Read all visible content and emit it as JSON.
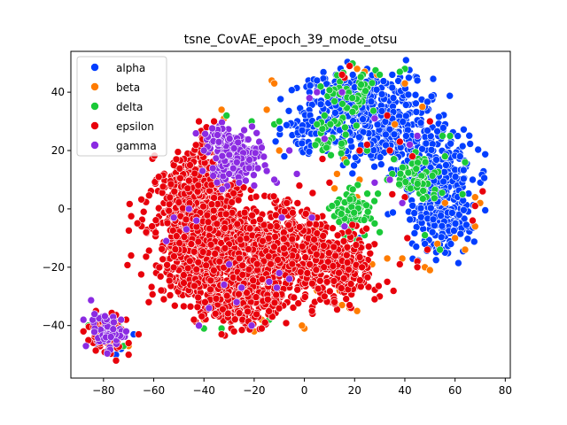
{
  "chart_data": {
    "type": "scatter",
    "title": "tsne_CovAE_epoch_39_mode_otsu",
    "xlabel": "",
    "ylabel": "",
    "xlim": [
      -93,
      82
    ],
    "ylim": [
      -58,
      54
    ],
    "xticks": [
      -80,
      -60,
      -40,
      -20,
      0,
      20,
      40,
      60,
      80
    ],
    "yticks": [
      -40,
      -20,
      0,
      20,
      40
    ],
    "grid": false,
    "legend_position": "top-left",
    "series": [
      {
        "name": "alpha",
        "color": "#023eff",
        "clusters": [
          {
            "center": [
              30,
              30
            ],
            "spread": [
              14,
              10
            ],
            "count": 360
          },
          {
            "center": [
              52,
              10
            ],
            "spread": [
              10,
              12
            ],
            "count": 260
          },
          {
            "center": [
              55,
              -5
            ],
            "spread": [
              8,
              7
            ],
            "count": 120
          },
          {
            "center": [
              15,
              38
            ],
            "spread": [
              10,
              6
            ],
            "count": 120
          },
          {
            "center": [
              0,
              28
            ],
            "spread": [
              6,
              6
            ],
            "count": 60
          }
        ],
        "points": [
          [
            -75,
            -50
          ],
          [
            -73,
            -48
          ],
          [
            -78,
            -45
          ],
          [
            -80,
            -41
          ],
          [
            -76,
            -38
          ],
          [
            -72,
            -44
          ],
          [
            -82,
            -47
          ],
          [
            -68,
            -43
          ],
          [
            25,
            48
          ],
          [
            35,
            46
          ],
          [
            45,
            44
          ],
          [
            62,
            18
          ],
          [
            67,
            10
          ],
          [
            48,
            -12
          ],
          [
            22,
            -10
          ],
          [
            56,
            -15
          ],
          [
            2,
            40
          ],
          [
            -8,
            18
          ],
          [
            5,
            44
          ]
        ]
      },
      {
        "name": "beta",
        "color": "#ff7c00",
        "points": [
          [
            -33,
            34
          ],
          [
            -13,
            44
          ],
          [
            -12,
            43
          ],
          [
            -32,
            31
          ],
          [
            -10,
            20
          ],
          [
            2,
            -2
          ],
          [
            5,
            -6
          ],
          [
            3,
            -8
          ],
          [
            17,
            -16
          ],
          [
            22,
            -12
          ],
          [
            48,
            -20
          ],
          [
            50,
            -21
          ],
          [
            53,
            -12
          ],
          [
            47,
            35
          ],
          [
            40,
            43
          ],
          [
            36,
            29
          ],
          [
            29,
            46
          ],
          [
            48,
            17
          ],
          [
            21,
            4
          ],
          [
            22,
            10
          ],
          [
            56,
            2
          ],
          [
            60,
            -10
          ],
          [
            68,
            -6
          ],
          [
            70,
            2
          ],
          [
            68,
            4
          ],
          [
            16,
            -25
          ],
          [
            12,
            7
          ],
          [
            6,
            -7
          ],
          [
            -15,
            34
          ],
          [
            13,
            -33
          ],
          [
            15,
            -33
          ],
          [
            18,
            -34
          ],
          [
            21,
            -35
          ],
          [
            14,
            -28
          ],
          [
            5,
            -28
          ],
          [
            7,
            -28
          ],
          [
            0,
            -41
          ],
          [
            -1,
            -40
          ],
          [
            -17,
            -38
          ],
          [
            -33,
            -36
          ],
          [
            -40,
            -38
          ],
          [
            -31,
            -32
          ],
          [
            -26,
            -34
          ],
          [
            -22,
            -39
          ],
          [
            -20,
            -42
          ],
          [
            -43,
            -15
          ],
          [
            -47,
            -12
          ],
          [
            -53,
            -14
          ],
          [
            -38,
            5
          ],
          [
            -33,
            8
          ],
          [
            -28,
            4
          ],
          [
            -24,
            -6
          ],
          [
            27,
            -19
          ],
          [
            33,
            -17
          ],
          [
            16,
            17
          ],
          [
            13,
            12
          ],
          [
            21,
            48
          ],
          [
            24,
            47
          ],
          [
            43,
            18
          ],
          [
            -80,
            -45
          ],
          [
            -78,
            -48
          ],
          [
            -74,
            -42
          ],
          [
            -70,
            -47
          ],
          [
            -77,
            -38
          ],
          [
            64,
            -14
          ],
          [
            39,
            -17
          ]
        ]
      },
      {
        "name": "delta",
        "color": "#1ac938",
        "clusters": [
          {
            "center": [
              20,
              0
            ],
            "spread": [
              5,
              4
            ],
            "count": 90
          },
          {
            "center": [
              45,
              10
            ],
            "spread": [
              6,
              6
            ],
            "count": 55
          },
          {
            "center": [
              20,
              38
            ],
            "spread": [
              6,
              6
            ],
            "count": 45
          },
          {
            "center": [
              10,
              25
            ],
            "spread": [
              5,
              5
            ],
            "count": 25
          }
        ],
        "points": [
          [
            40,
            48
          ],
          [
            38,
            47
          ],
          [
            30,
            46
          ],
          [
            8,
            32
          ],
          [
            5,
            29
          ],
          [
            -12,
            29
          ],
          [
            -10,
            30
          ],
          [
            -21,
            30
          ],
          [
            -31,
            32
          ],
          [
            -29,
            22
          ],
          [
            -27,
            15
          ],
          [
            63,
            5
          ],
          [
            64,
            16
          ],
          [
            56,
            18
          ],
          [
            54,
            -14
          ],
          [
            48,
            -9
          ],
          [
            55,
            25
          ],
          [
            58,
            25
          ],
          [
            -78,
            -44
          ],
          [
            -74,
            -40
          ],
          [
            -72,
            -47
          ],
          [
            -80,
            -38
          ],
          [
            -76,
            -46
          ],
          [
            -86,
            -40
          ],
          [
            -83,
            -37
          ],
          [
            -40,
            -41
          ],
          [
            -33,
            -41
          ],
          [
            -16,
            -40
          ],
          [
            -14,
            -38
          ],
          [
            -28,
            -34
          ],
          [
            -25,
            -36
          ],
          [
            13,
            2
          ],
          [
            11,
            1
          ],
          [
            28,
            -5
          ],
          [
            30,
            -8
          ],
          [
            24,
            -9
          ],
          [
            16,
            -9
          ],
          [
            35,
            12
          ],
          [
            33,
            10
          ],
          [
            25,
            20
          ]
        ]
      },
      {
        "name": "epsilon",
        "color": "#e8000b",
        "clusters": [
          {
            "center": [
              -40,
              -10
            ],
            "spread": [
              13,
              13
            ],
            "count": 950
          },
          {
            "center": [
              -10,
              -15
            ],
            "spread": [
              12,
              10
            ],
            "count": 600
          },
          {
            "center": [
              -25,
              -30
            ],
            "spread": [
              10,
              7
            ],
            "count": 300
          },
          {
            "center": [
              15,
              -20
            ],
            "spread": [
              9,
              8
            ],
            "count": 220
          },
          {
            "center": [
              -45,
              10
            ],
            "spread": [
              8,
              6
            ],
            "count": 170
          },
          {
            "center": [
              -78,
              -42
            ],
            "spread": [
              4,
              4
            ],
            "count": 130
          },
          {
            "center": [
              -40,
              20
            ],
            "spread": [
              3,
              5
            ],
            "count": 30
          }
        ],
        "points": [
          [
            -42,
            30
          ],
          [
            -39,
            28
          ],
          [
            -35,
            25
          ],
          [
            -36,
            30
          ],
          [
            -52,
            15
          ],
          [
            -58,
            11
          ],
          [
            -64,
            -1
          ],
          [
            -69,
            -16
          ],
          [
            -62,
            -32
          ],
          [
            -56,
            -31
          ],
          [
            -63,
            -8
          ],
          [
            -51,
            17
          ],
          [
            -44,
            -38
          ],
          [
            -33,
            -43
          ],
          [
            -28,
            -42
          ],
          [
            -17,
            -41
          ],
          [
            30,
            -30
          ],
          [
            28,
            -31
          ],
          [
            33,
            -25
          ],
          [
            38,
            -19
          ],
          [
            45,
            -18
          ],
          [
            49,
            -14
          ],
          [
            41,
            -10
          ],
          [
            45,
            -20
          ],
          [
            18,
            -33
          ],
          [
            12,
            -32
          ],
          [
            8,
            -30
          ],
          [
            3,
            -35
          ],
          [
            22,
            20
          ],
          [
            25,
            22
          ],
          [
            34,
            20
          ],
          [
            38,
            23
          ],
          [
            16,
            45
          ],
          [
            18,
            49
          ],
          [
            15,
            46
          ],
          [
            43,
            18
          ],
          [
            50,
            30
          ],
          [
            33,
            32
          ],
          [
            35,
            5
          ],
          [
            40,
            4
          ],
          [
            67,
            -4
          ],
          [
            71,
            6
          ],
          [
            68,
            1
          ],
          [
            10,
            9
          ],
          [
            5,
            -3
          ],
          [
            -2,
            8
          ],
          [
            -7,
            2
          ],
          [
            -86,
            -45
          ],
          [
            -88,
            -42
          ],
          [
            -71,
            -38
          ],
          [
            -70,
            -46
          ],
          [
            -66,
            -43
          ],
          [
            -70,
            -50
          ],
          [
            -75,
            -52
          ],
          [
            -83,
            -35
          ]
        ]
      },
      {
        "name": "gamma",
        "color": "#8b2be2",
        "clusters": [
          {
            "center": [
              -28,
              18
            ],
            "spread": [
              6,
              5
            ],
            "count": 230
          },
          {
            "center": [
              -34,
              25
            ],
            "spread": [
              3,
              3
            ],
            "count": 40
          },
          {
            "center": [
              -79,
              -42
            ],
            "spread": [
              4,
              4
            ],
            "count": 60
          }
        ],
        "points": [
          [
            -11,
            9
          ],
          [
            -18,
            23
          ],
          [
            -17,
            21
          ],
          [
            -40,
            20
          ],
          [
            -15,
            13
          ],
          [
            -22,
            14
          ],
          [
            -26,
            9
          ],
          [
            -30,
            12
          ],
          [
            -20,
            8
          ],
          [
            -12,
            10
          ],
          [
            -24,
            27
          ],
          [
            -19,
            26
          ],
          [
            -87,
            -47
          ],
          [
            -88,
            -38
          ],
          [
            -73,
            -38
          ],
          [
            -71,
            -42
          ],
          [
            -38,
            -34
          ],
          [
            -27,
            -32
          ],
          [
            -21,
            -40
          ],
          [
            -11,
            -27
          ],
          [
            -14,
            -25
          ],
          [
            -42,
            -40
          ],
          [
            -10,
            -22
          ],
          [
            -6,
            -24
          ],
          [
            -9,
            -3
          ],
          [
            -43,
            -4
          ],
          [
            -30,
            -19
          ],
          [
            -47,
            -7
          ],
          [
            3,
            -3
          ],
          [
            -6,
            20
          ],
          [
            -3,
            12
          ],
          [
            2,
            38
          ],
          [
            5,
            40
          ],
          [
            34,
            10
          ],
          [
            28,
            9
          ],
          [
            -46,
            0
          ],
          [
            -52,
            -3
          ],
          [
            -55,
            -11
          ],
          [
            -25,
            -27
          ],
          [
            -32,
            -26
          ],
          [
            16,
            -6
          ],
          [
            39,
            2
          ],
          [
            42,
            22
          ],
          [
            45,
            25
          ],
          [
            28,
            31
          ],
          [
            8,
            24
          ],
          [
            15,
            40
          ]
        ]
      }
    ]
  }
}
